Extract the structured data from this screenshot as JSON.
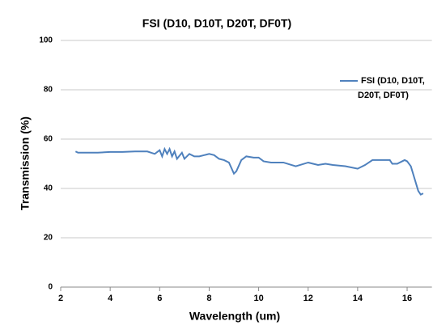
{
  "chart_data": {
    "type": "line",
    "title": "FSI (D10, D10T, D20T, DF0T)",
    "x_label": "Wavelength (um)",
    "y_label": "Transmission (%)",
    "xlim": [
      2,
      17
    ],
    "xticks": [
      2,
      4,
      6,
      8,
      10,
      12,
      14,
      16
    ],
    "ylim": [
      0,
      100
    ],
    "yticks": [
      0,
      20,
      40,
      60,
      80,
      100
    ],
    "grid": true,
    "legend": "right",
    "series": [
      {
        "name": "FSI (D10, D10T, D20T, DF0T)",
        "color": "#4f81bd",
        "x": [
          2.6,
          2.7,
          3,
          3.5,
          4,
          4.5,
          5,
          5.5,
          5.8,
          6,
          6.1,
          6.2,
          6.3,
          6.4,
          6.5,
          6.6,
          6.7,
          6.9,
          7,
          7.2,
          7.4,
          7.6,
          7.8,
          8,
          8.2,
          8.4,
          8.6,
          8.8,
          9,
          9.1,
          9.3,
          9.5,
          9.8,
          10,
          10.2,
          10.5,
          11,
          11.5,
          12,
          12.2,
          12.4,
          12.7,
          13,
          13.5,
          14,
          14.3,
          14.6,
          15,
          15.3,
          15.4,
          15.6,
          15.9,
          16.0,
          16.15,
          16.3,
          16.45,
          16.55,
          16.65
        ],
        "values": [
          55,
          54.5,
          54.5,
          54.5,
          54.8,
          54.8,
          55,
          55,
          54,
          55.5,
          53,
          56,
          54,
          56,
          53,
          55,
          52,
          54.5,
          52,
          54,
          53,
          53,
          53.5,
          54,
          53.5,
          52,
          51.5,
          50.5,
          46,
          47,
          51.5,
          53,
          52.5,
          52.5,
          51,
          50.5,
          50.5,
          49,
          50.5,
          50,
          49.5,
          50,
          49.5,
          49,
          48,
          49.5,
          51.5,
          51.5,
          51.5,
          50,
          50,
          51.5,
          51,
          49,
          44,
          39,
          37.5,
          38
        ]
      }
    ]
  }
}
